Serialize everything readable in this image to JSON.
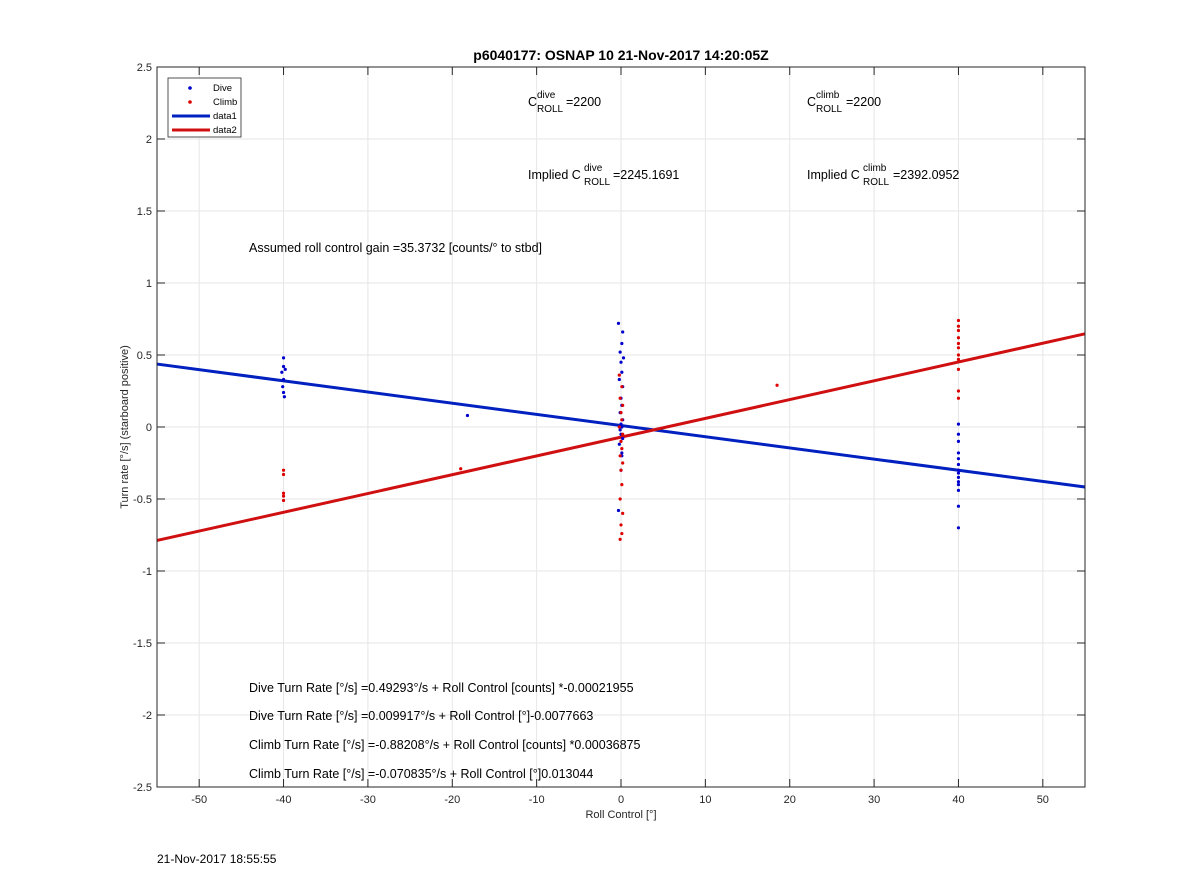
{
  "chart_data": {
    "type": "scatter",
    "title": "p6040177: OSNAP 10 21-Nov-2017 14:20:05Z",
    "xlabel": "Roll Control [°]",
    "ylabel": "Turn rate [°/s] (starboard positive)",
    "xlim": [
      -55,
      55
    ],
    "ylim": [
      -2.5,
      2.5
    ],
    "xticks": [
      -50,
      -40,
      -30,
      -20,
      -10,
      0,
      10,
      20,
      30,
      40,
      50
    ],
    "yticks": [
      -2.5,
      -2,
      -1.5,
      -1,
      -0.5,
      0,
      0.5,
      1,
      1.5,
      2,
      2.5
    ],
    "grid": true,
    "legend_position": "top-left",
    "legend": [
      "Dive",
      "Climb",
      "data1",
      "data2"
    ],
    "colors": {
      "dive": "#0000cc",
      "climb": "#dd0000",
      "line_dive": "#0020c0",
      "line_climb": "#d01010"
    },
    "series": [
      {
        "name": "Dive",
        "kind": "points",
        "x": [
          -40,
          -40,
          -40.2,
          -39.8,
          -40,
          -40.1,
          -40,
          -39.9,
          -18.2,
          -0.3,
          0.2,
          0.1,
          -0.1,
          0.3,
          0,
          0.1,
          -0.2,
          0.2,
          0,
          0.1,
          -0.1,
          0.2,
          0,
          0.1,
          -0.1,
          0,
          0.2,
          -0.2,
          0.1,
          -0.3,
          0,
          0.1,
          40,
          40,
          40,
          40,
          40,
          40,
          40,
          40,
          40,
          40,
          40,
          40,
          40,
          40
        ],
        "y": [
          0.48,
          0.42,
          0.38,
          0.4,
          0.33,
          0.28,
          0.24,
          0.21,
          0.08,
          0.72,
          0.66,
          0.58,
          0.52,
          0.48,
          0.45,
          0.38,
          0.33,
          0.28,
          0.2,
          0.15,
          0.1,
          0.05,
          0.02,
          0,
          -0.02,
          -0.05,
          -0.08,
          -0.12,
          -0.18,
          -0.58,
          -0.3,
          -0.2,
          0.02,
          -0.05,
          -0.1,
          -0.18,
          -0.22,
          -0.26,
          -0.3,
          -0.32,
          -0.35,
          -0.38,
          -0.4,
          -0.44,
          -0.55,
          -0.7
        ]
      },
      {
        "name": "Climb",
        "kind": "points",
        "x": [
          -40,
          -40,
          -40,
          -40,
          -40,
          -19,
          -0.2,
          0.1,
          -0.1,
          0.2,
          0,
          0.1,
          -0.2,
          0.2,
          0,
          0.1,
          -0.1,
          0.2,
          0,
          0.1,
          -0.1,
          0.2,
          0,
          0.1,
          -0.1,
          18.5,
          40,
          40,
          40,
          40,
          40,
          40,
          40,
          40,
          40,
          40,
          40
        ],
        "y": [
          -0.3,
          -0.33,
          -0.46,
          -0.48,
          -0.51,
          -0.29,
          0.36,
          0.28,
          0.2,
          0.15,
          0.1,
          0.05,
          0,
          -0.05,
          -0.1,
          -0.15,
          -0.2,
          -0.25,
          -0.3,
          -0.4,
          -0.5,
          -0.6,
          -0.68,
          -0.74,
          -0.78,
          0.29,
          0.74,
          0.7,
          0.67,
          0.62,
          0.58,
          0.55,
          0.5,
          0.47,
          0.4,
          0.25,
          0.2
        ]
      },
      {
        "name": "data1",
        "kind": "line",
        "x": [
          -55,
          55
        ],
        "y": [
          0.437,
          -0.417
        ]
      },
      {
        "name": "data2",
        "kind": "line",
        "x": [
          -55,
          55
        ],
        "y": [
          -0.788,
          0.647
        ]
      }
    ],
    "annotations": {
      "c_dive": {
        "base": "C",
        "sup": "dive",
        "sub": "ROLL",
        "value": "=2200"
      },
      "c_climb": {
        "base": "C",
        "sup": "climb",
        "sub": "ROLL",
        "value": "=2200"
      },
      "implied_dive": {
        "prefix": "Implied C",
        "sup": "dive",
        "sub": "ROLL",
        "value": "=2245.1691"
      },
      "implied_climb": {
        "prefix": "Implied C",
        "sup": "climb",
        "sub": "ROLL",
        "value": "=2392.0952"
      },
      "gain": "Assumed roll control gain =35.3732 [counts/° to stbd]",
      "eq1": "Dive Turn Rate [°/s] =0.49293°/s + Roll Control [counts] *-0.00021955",
      "eq2": "Dive Turn Rate [°/s] =0.009917°/s + Roll Control [°]-0.0077663",
      "eq3": "Climb Turn Rate [°/s] =-0.88208°/s + Roll Control [counts] *0.00036875",
      "eq4": "Climb Turn Rate [°/s] =-0.070835°/s + Roll Control [°]0.013044"
    }
  },
  "footer": {
    "timestamp": "21-Nov-2017 18:55:55"
  }
}
